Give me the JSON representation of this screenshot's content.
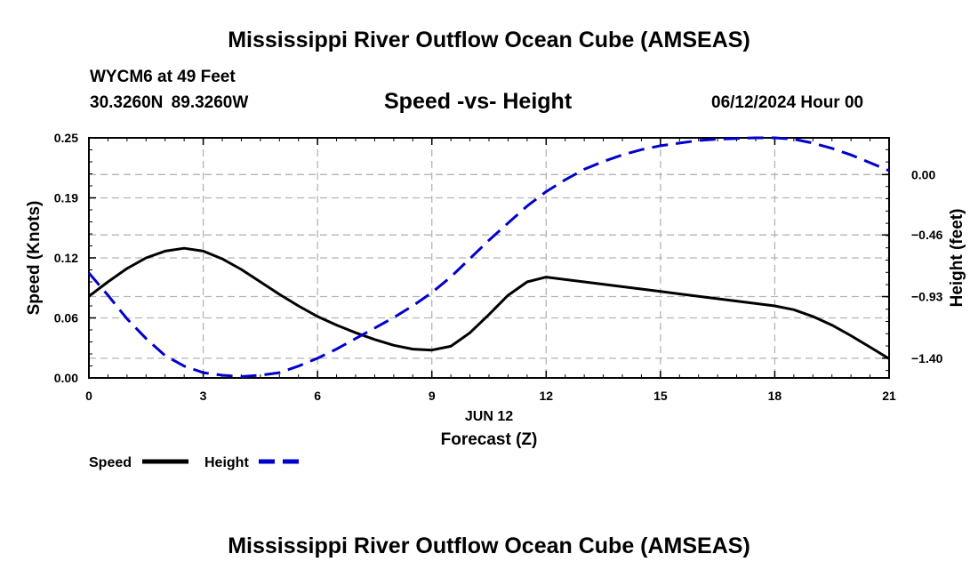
{
  "header": {
    "title": "Mississippi River Outflow Ocean Cube (AMSEAS)",
    "station": "WYCM6 at 49 Feet",
    "coordinates": "30.3260N  89.3260W",
    "subtitle": "Speed -vs- Height",
    "timestamp": "06/12/2024 Hour 00"
  },
  "footer": {
    "title": "Mississippi River Outflow Ocean Cube (AMSEAS)"
  },
  "colors": {
    "speed": "#000000",
    "height": "#0000cc",
    "grid": "#b4b4b4"
  },
  "chart_data": {
    "type": "line",
    "title": "Speed -vs- Height",
    "xlabel": "Forecast (Z)",
    "xlabel_date": "JUN 12",
    "ylabel_left": "Speed (Knots)",
    "ylabel_right": "Height (feet)",
    "xlim": [
      0,
      21
    ],
    "ylim_left": [
      0.0,
      0.25
    ],
    "ylim_right": [
      -1.55,
      0.28
    ],
    "x_ticks": [
      0,
      3,
      6,
      9,
      12,
      15,
      18,
      21
    ],
    "x_tick_labels": [
      "0",
      "3",
      "6",
      "9",
      "12",
      "15",
      "18",
      "21"
    ],
    "y_left_ticks": [
      0.0,
      0.0625,
      0.125,
      0.1875,
      0.25
    ],
    "y_left_tick_labels": [
      "0.00",
      "0.06",
      "0.12",
      "0.19",
      "0.25"
    ],
    "y_right_ticks": [
      0.0,
      -0.46,
      -0.93,
      -1.4
    ],
    "y_right_tick_labels": [
      "0.00",
      "−0.46",
      "−0.93",
      "−1.40"
    ],
    "grid": true,
    "legend_position": "bottom-left",
    "series": [
      {
        "name": "Speed",
        "axis": "left",
        "style": "solid",
        "x": [
          0,
          0.5,
          1,
          1.5,
          2,
          2.5,
          3,
          3.5,
          4,
          4.5,
          5,
          5.5,
          6,
          6.5,
          7,
          7.5,
          8,
          8.5,
          9,
          9.5,
          10,
          10.5,
          11,
          11.5,
          12,
          13,
          14,
          15,
          16,
          17,
          18,
          18.5,
          19,
          19.5,
          20,
          20.5,
          21
        ],
        "values": [
          0.085,
          0.1,
          0.114,
          0.125,
          0.132,
          0.135,
          0.132,
          0.124,
          0.113,
          0.1,
          0.087,
          0.075,
          0.064,
          0.055,
          0.047,
          0.04,
          0.034,
          0.03,
          0.029,
          0.033,
          0.047,
          0.066,
          0.086,
          0.1,
          0.105,
          0.1,
          0.095,
          0.09,
          0.085,
          0.08,
          0.075,
          0.071,
          0.064,
          0.055,
          0.044,
          0.032,
          0.02
        ]
      },
      {
        "name": "Height",
        "axis": "right",
        "style": "dashed",
        "x": [
          0,
          0.5,
          1,
          1.5,
          2,
          2.5,
          3,
          3.5,
          4,
          4.5,
          5,
          5.5,
          6,
          6.5,
          7,
          7.5,
          8,
          8.5,
          9,
          9.5,
          10,
          10.5,
          11,
          11.5,
          12,
          12.5,
          13,
          13.5,
          14,
          14.5,
          15,
          15.5,
          16,
          16.5,
          17,
          17.5,
          18,
          18.5,
          19,
          19.5,
          20,
          20.5,
          21
        ],
        "values": [
          -0.75,
          -0.92,
          -1.1,
          -1.25,
          -1.38,
          -1.46,
          -1.51,
          -1.53,
          -1.54,
          -1.53,
          -1.51,
          -1.46,
          -1.4,
          -1.33,
          -1.25,
          -1.17,
          -1.09,
          -1.0,
          -0.9,
          -0.78,
          -0.64,
          -0.5,
          -0.37,
          -0.24,
          -0.13,
          -0.04,
          0.04,
          0.1,
          0.15,
          0.19,
          0.22,
          0.24,
          0.26,
          0.27,
          0.275,
          0.28,
          0.28,
          0.27,
          0.24,
          0.2,
          0.15,
          0.09,
          0.03
        ]
      }
    ]
  }
}
